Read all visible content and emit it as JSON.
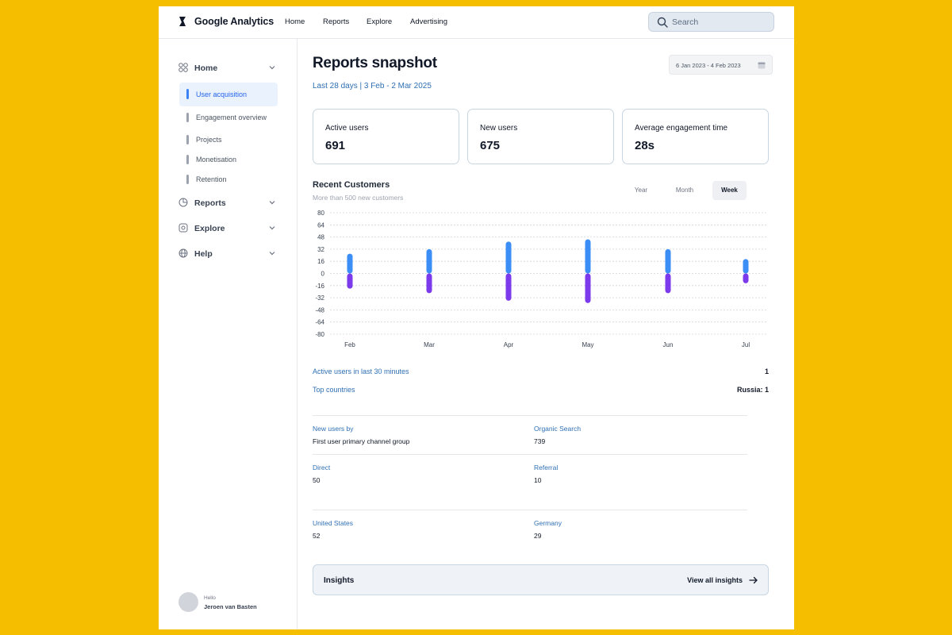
{
  "app": {
    "brand": "Google Analytics",
    "accent": "#2F6FB3",
    "background": "#F5BF00"
  },
  "topnav": {
    "items": [
      "Home",
      "Reports",
      "Explore",
      "Advertising"
    ]
  },
  "search": {
    "placeholder": "Search"
  },
  "sidebar": {
    "sections": [
      {
        "label": "Home",
        "icon": "grid-icon"
      },
      {
        "label": "Reports",
        "icon": "pie-chart-icon"
      },
      {
        "label": "Explore",
        "icon": "explore-icon"
      },
      {
        "label": "Help",
        "icon": "globe-icon"
      }
    ],
    "home_items": [
      "User acquisition",
      "Engagement overview",
      "Projects",
      "Monetisation",
      "Retention"
    ],
    "active_item": "User acquisition",
    "user": {
      "greeting": "Hello",
      "name": "Jeroen van Basten"
    }
  },
  "main": {
    "title": "Reports snapshot",
    "subtitle": "Last 28 days | 3 Feb - 2 Mar 2025",
    "date_range": "6 Jan 2023 - 4 Feb 2023",
    "stats": [
      {
        "label": "Active users",
        "value": "691"
      },
      {
        "label": "New users",
        "value": "675"
      },
      {
        "label": "Average engagement time",
        "value": "28s"
      }
    ],
    "chart": {
      "title": "Recent Customers",
      "subtitle": "More than 500 new customers",
      "periods": [
        "Year",
        "Month",
        "Week"
      ],
      "active_period": "Week"
    },
    "realtime": {
      "active_label": "Active users in last 30 minutes",
      "active_value": "1",
      "countries_label": "Top countries",
      "countries_value": "Russia: 1"
    },
    "channels": {
      "col1_label": "New users by",
      "col1_value": "First user primary channel group",
      "col2_label": "Organic Search",
      "col2_value": "739",
      "col3_label": "Direct",
      "col3_value": "50",
      "col4_label": "Referral",
      "col4_value": "10"
    },
    "countries": {
      "c1_label": "United States",
      "c1_value": "52",
      "c2_label": "Germany",
      "c2_value": "29"
    },
    "insights": {
      "title": "Insights",
      "link": "View all insights"
    }
  },
  "chart_data": {
    "type": "bar",
    "categories": [
      "Feb",
      "Mar",
      "Apr",
      "May",
      "Jun",
      "Jul"
    ],
    "series": [
      {
        "values": [
          26,
          32,
          42,
          45,
          32,
          19
        ],
        "color": "#3B8EF6"
      },
      {
        "values": [
          -20,
          -26,
          -36,
          -39,
          -26,
          -13
        ],
        "color": "#7C3AED"
      }
    ],
    "ylim": [
      -80,
      80
    ],
    "yticks": [
      80,
      64,
      48,
      32,
      16,
      0,
      -16,
      -32,
      -48,
      -64,
      -80
    ],
    "grid": true,
    "stacked": true
  }
}
